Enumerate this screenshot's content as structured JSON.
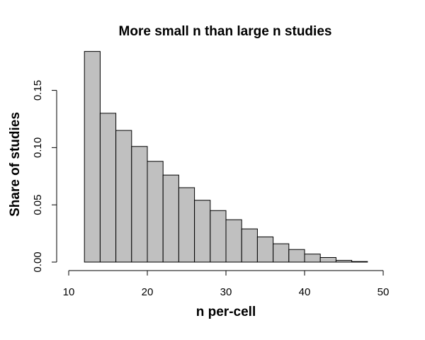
{
  "chart_data": {
    "type": "bar",
    "title": "More small n than large n studies",
    "xlabel": "n per-cell",
    "ylabel": "Share of studies",
    "x_ticks": [
      10,
      20,
      30,
      40,
      50
    ],
    "x_tick_labels": [
      "10",
      "20",
      "30",
      "40",
      "50"
    ],
    "y_ticks": [
      0.0,
      0.05,
      0.1,
      0.15
    ],
    "y_tick_labels": [
      "0.00",
      "0.05",
      "0.10",
      "0.15"
    ],
    "xlim": [
      10,
      50
    ],
    "ylim": [
      0,
      0.185
    ],
    "bin_edges": [
      12,
      14,
      16,
      18,
      20,
      22,
      24,
      26,
      28,
      30,
      32,
      34,
      36,
      38,
      40,
      42,
      44,
      46,
      48
    ],
    "values": [
      0.184,
      0.13,
      0.115,
      0.101,
      0.088,
      0.076,
      0.065,
      0.054,
      0.045,
      0.037,
      0.029,
      0.022,
      0.016,
      0.011,
      0.007,
      0.004,
      0.0015,
      0.0005
    ],
    "bar_color": "#c0c0c0",
    "grid": false,
    "legend": "none"
  }
}
